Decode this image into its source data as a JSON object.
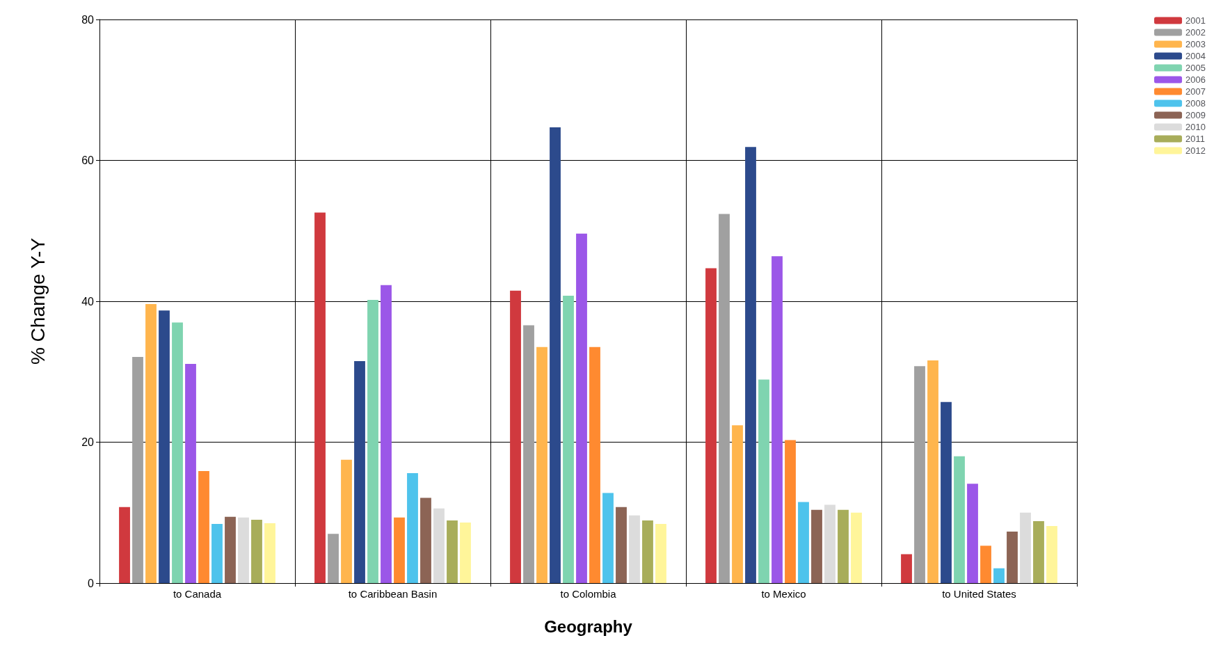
{
  "chart_data": {
    "type": "bar",
    "xlabel": "Geography",
    "ylabel": "% Change Y-Y",
    "categories": [
      "to Canada",
      "to Caribbean Basin",
      "to Colombia",
      "to Mexico",
      "to United States"
    ],
    "ylim": [
      0,
      80
    ],
    "yticks": [
      0,
      20,
      40,
      60,
      80
    ],
    "grid": true,
    "legend": "top right",
    "series": [
      {
        "name": "2001",
        "color": "#d0393e",
        "values": [
          10.8,
          52.6,
          41.5,
          44.7,
          4.1
        ]
      },
      {
        "name": "2002",
        "color": "#a0a0a0",
        "values": [
          32.1,
          7.0,
          36.6,
          52.4,
          30.8
        ]
      },
      {
        "name": "2003",
        "color": "#ffb54d",
        "values": [
          39.6,
          17.5,
          33.5,
          22.4,
          31.6
        ]
      },
      {
        "name": "2004",
        "color": "#2c4a8c",
        "values": [
          38.7,
          31.5,
          64.7,
          61.9,
          25.7
        ]
      },
      {
        "name": "2005",
        "color": "#7fd4b0",
        "values": [
          37.0,
          40.2,
          40.8,
          28.9,
          18.0
        ]
      },
      {
        "name": "2006",
        "color": "#9b57e8",
        "values": [
          31.1,
          42.3,
          49.6,
          46.4,
          14.1
        ]
      },
      {
        "name": "2007",
        "color": "#ff8a30",
        "values": [
          15.9,
          9.3,
          33.5,
          20.3,
          5.3
        ]
      },
      {
        "name": "2008",
        "color": "#4ec3ec",
        "values": [
          8.4,
          15.6,
          12.8,
          11.5,
          2.1
        ]
      },
      {
        "name": "2009",
        "color": "#8c6455",
        "values": [
          9.4,
          12.1,
          10.8,
          10.4,
          7.3
        ]
      },
      {
        "name": "2010",
        "color": "#dcdcdc",
        "values": [
          9.3,
          10.6,
          9.6,
          11.1,
          10.0
        ]
      },
      {
        "name": "2011",
        "color": "#a8ad5a",
        "values": [
          9.0,
          8.9,
          8.9,
          10.4,
          8.8
        ]
      },
      {
        "name": "2012",
        "color": "#fff59a",
        "values": [
          8.5,
          8.6,
          8.4,
          10.0,
          8.1
        ]
      }
    ]
  }
}
